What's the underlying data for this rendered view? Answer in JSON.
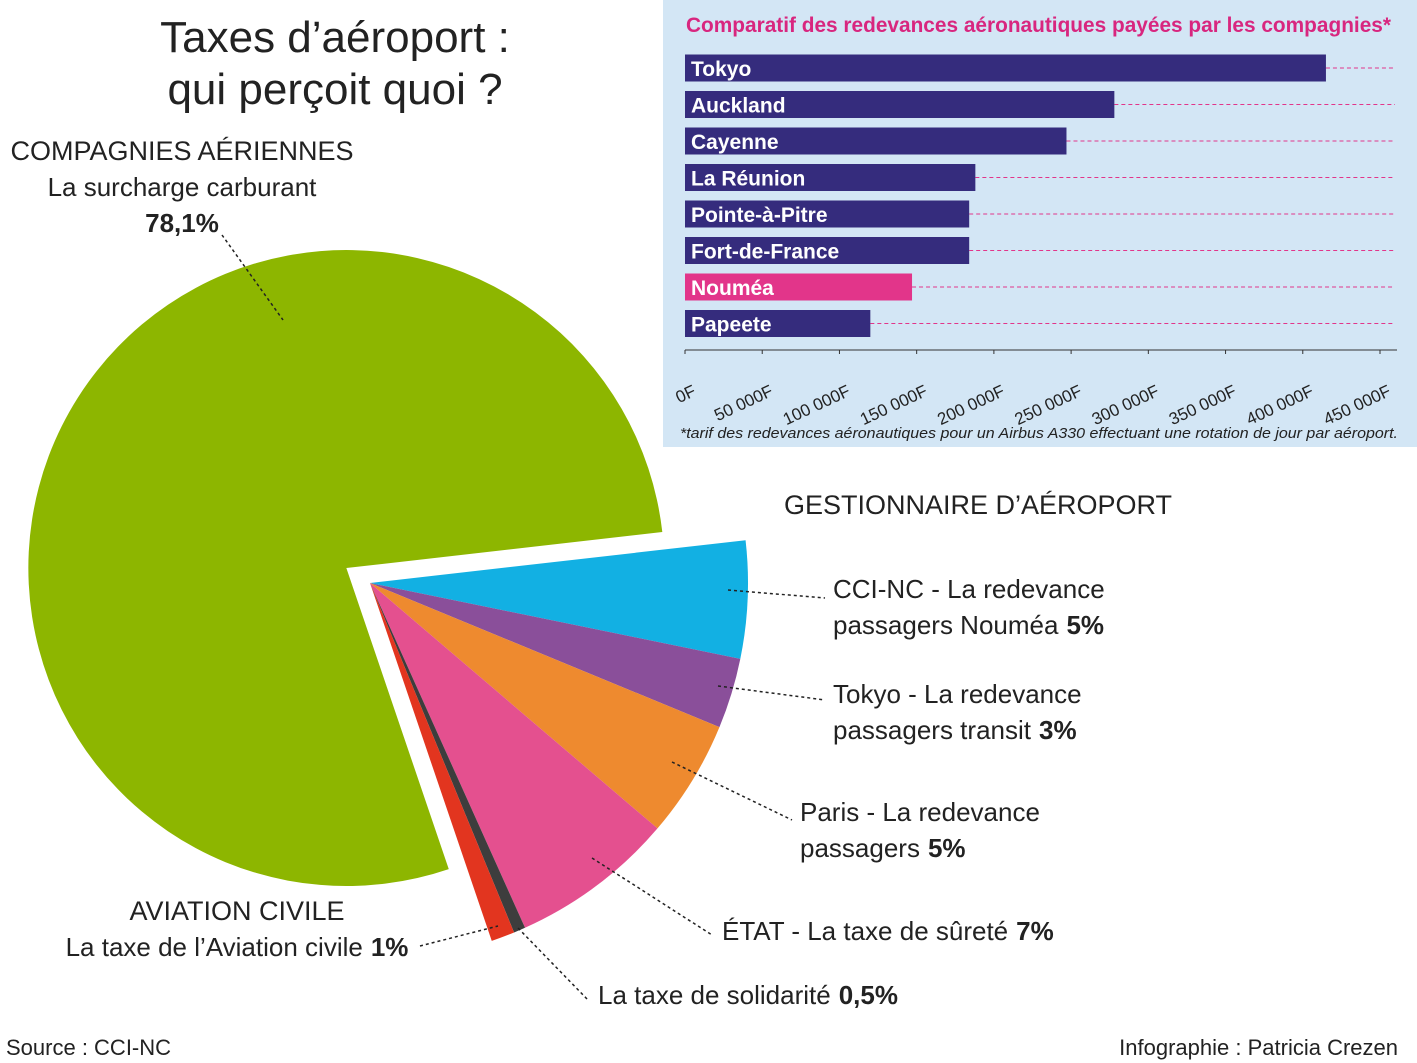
{
  "chart_data": [
    {
      "type": "pie",
      "title_lines": [
        "Taxes d’aéroport :",
        "qui perçoit quoi ?"
      ],
      "annotation": "GESTIONNAIRE D’AÉROPORT",
      "values": [
        78.1,
        5,
        3,
        5,
        7,
        0.5,
        1
      ],
      "value_labels": [
        "78,1%",
        "5%",
        "3%",
        "5%",
        "7%",
        "0,5%",
        "1%"
      ],
      "colors": [
        "#8db600",
        "#12b0e3",
        "#8a4f9a",
        "#ee8a2f",
        "#e4508f",
        "#3d3d3d",
        "#e2351f"
      ],
      "slices": [
        {
          "group": "COMPAGNIES AÉRIENNES",
          "lines": [
            "La surcharge carburant"
          ]
        },
        {
          "lines": [
            "CCI-NC - La redevance",
            "passagers Nouméa"
          ]
        },
        {
          "lines": [
            "Tokyo - La redevance",
            "passagers transit"
          ]
        },
        {
          "lines": [
            "Paris - La redevance",
            "passagers"
          ]
        },
        {
          "lines": [
            "ÉTAT - La taxe de sûreté"
          ]
        },
        {
          "lines": [
            "La taxe de solidarité"
          ]
        },
        {
          "group": "AVIATION CIVILE",
          "lines": [
            "La taxe de l’Aviation civile"
          ]
        }
      ]
    },
    {
      "type": "bar",
      "title": "Comparatif des redevances aéronautiques payées par les compagnies*",
      "categories": [
        "Tokyo",
        "Auckland",
        "Cayenne",
        "La Réunion",
        "Pointe-à-Pitre",
        "Fort-de-France",
        "Nouméa",
        "Papeete"
      ],
      "values": [
        415000,
        278000,
        247000,
        188000,
        184000,
        184000,
        147000,
        120000
      ],
      "colors": [
        "#352c7d",
        "#352c7d",
        "#352c7d",
        "#352c7d",
        "#352c7d",
        "#352c7d",
        "#e2358a",
        "#352c7d"
      ],
      "xlim": [
        0,
        450000
      ],
      "xticks": [
        {
          "value": 0,
          "label": "0F"
        },
        {
          "value": 50000,
          "label": "50 000F"
        },
        {
          "value": 100000,
          "label": "100 000F"
        },
        {
          "value": 150000,
          "label": "150 000F"
        },
        {
          "value": 200000,
          "label": "200 000F"
        },
        {
          "value": 250000,
          "label": "250 000F"
        },
        {
          "value": 300000,
          "label": "300 000F"
        },
        {
          "value": 350000,
          "label": "350 000F"
        },
        {
          "value": 400000,
          "label": "400 000F"
        },
        {
          "value": 450000,
          "label": "450 000F"
        }
      ],
      "footnote": "*tarif des redevances aéronautiques pour un Airbus A330 effectuant une rotation de jour par aéroport."
    }
  ],
  "source": "Source : CCI-NC",
  "credit": "Infographie : Patricia Crezen"
}
